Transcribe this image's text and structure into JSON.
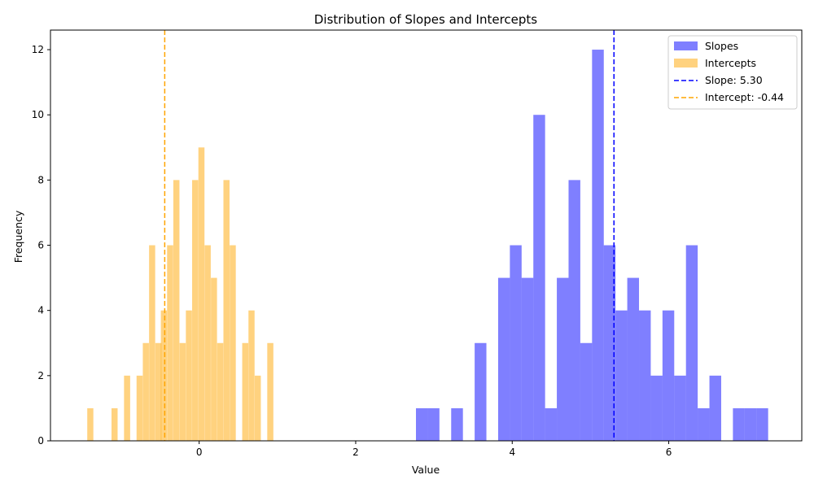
{
  "chart_data": {
    "type": "histogram",
    "title": "Distribution of Slopes and Intercepts",
    "xlabel": "Value",
    "ylabel": "Frequency",
    "xlim": [
      -1.9,
      7.7
    ],
    "ylim": [
      0,
      12.6
    ],
    "xticks": [
      0,
      2,
      4,
      6
    ],
    "yticks": [
      0,
      2,
      4,
      6,
      8,
      10,
      12
    ],
    "grid": false,
    "legend_position": "top-right",
    "series": [
      {
        "name": "Slopes",
        "color": "#0000ff",
        "alpha": 0.5,
        "bin_width": 0.15,
        "bins": [
          {
            "x0": 2.77,
            "count": 1
          },
          {
            "x0": 2.92,
            "count": 1
          },
          {
            "x0": 3.22,
            "count": 1
          },
          {
            "x0": 3.52,
            "count": 3
          },
          {
            "x0": 3.82,
            "count": 5
          },
          {
            "x0": 3.97,
            "count": 6
          },
          {
            "x0": 4.12,
            "count": 5
          },
          {
            "x0": 4.27,
            "count": 10
          },
          {
            "x0": 4.42,
            "count": 1
          },
          {
            "x0": 4.57,
            "count": 5
          },
          {
            "x0": 4.72,
            "count": 8
          },
          {
            "x0": 4.87,
            "count": 3
          },
          {
            "x0": 5.02,
            "count": 12
          },
          {
            "x0": 5.17,
            "count": 6
          },
          {
            "x0": 5.32,
            "count": 4
          },
          {
            "x0": 5.47,
            "count": 5
          },
          {
            "x0": 5.62,
            "count": 4
          },
          {
            "x0": 5.77,
            "count": 2
          },
          {
            "x0": 5.92,
            "count": 4
          },
          {
            "x0": 6.07,
            "count": 2
          },
          {
            "x0": 6.22,
            "count": 6
          },
          {
            "x0": 6.37,
            "count": 1
          },
          {
            "x0": 6.52,
            "count": 2
          },
          {
            "x0": 6.82,
            "count": 1
          },
          {
            "x0": 6.97,
            "count": 1
          },
          {
            "x0": 7.12,
            "count": 1
          }
        ]
      },
      {
        "name": "Intercepts",
        "color": "#ffa500",
        "alpha": 0.5,
        "bin_width": 0.078,
        "bins": [
          {
            "x0": -1.43,
            "count": 1
          },
          {
            "x0": -1.12,
            "count": 1
          },
          {
            "x0": -0.96,
            "count": 2
          },
          {
            "x0": -0.8,
            "count": 2
          },
          {
            "x0": -0.72,
            "count": 3
          },
          {
            "x0": -0.64,
            "count": 6
          },
          {
            "x0": -0.56,
            "count": 3
          },
          {
            "x0": -0.49,
            "count": 4
          },
          {
            "x0": -0.41,
            "count": 6
          },
          {
            "x0": -0.33,
            "count": 8
          },
          {
            "x0": -0.25,
            "count": 3
          },
          {
            "x0": -0.17,
            "count": 4
          },
          {
            "x0": -0.09,
            "count": 8
          },
          {
            "x0": -0.01,
            "count": 9
          },
          {
            "x0": 0.07,
            "count": 6
          },
          {
            "x0": 0.15,
            "count": 5
          },
          {
            "x0": 0.23,
            "count": 3
          },
          {
            "x0": 0.31,
            "count": 8
          },
          {
            "x0": 0.39,
            "count": 6
          },
          {
            "x0": 0.55,
            "count": 3
          },
          {
            "x0": 0.63,
            "count": 4
          },
          {
            "x0": 0.71,
            "count": 2
          },
          {
            "x0": 0.87,
            "count": 3
          }
        ]
      }
    ],
    "reference_lines": [
      {
        "name": "Slope: 5.30",
        "x": 5.3,
        "color": "#0000ff",
        "style": "dashed"
      },
      {
        "name": "Intercept: -0.44",
        "x": -0.44,
        "color": "#ffa500",
        "style": "dashed"
      }
    ]
  }
}
